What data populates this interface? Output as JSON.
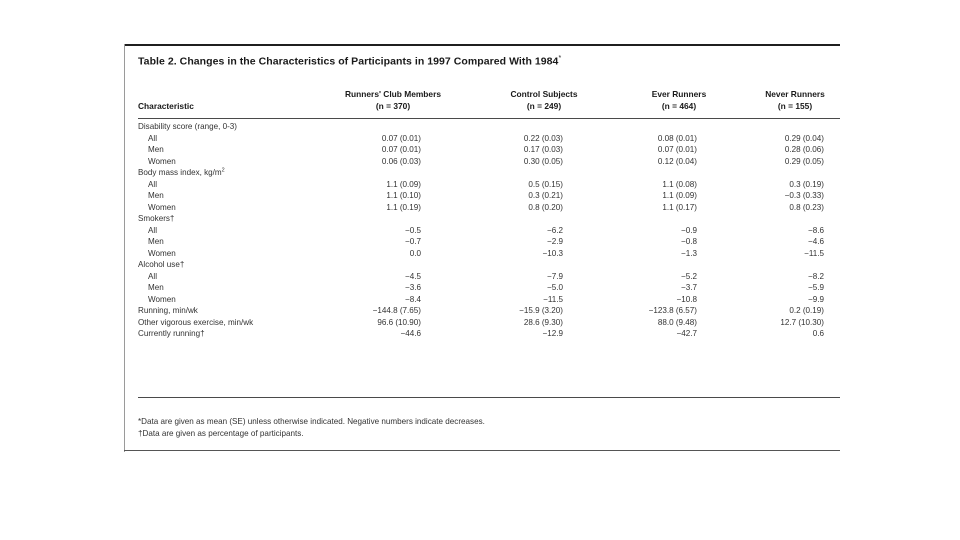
{
  "table": {
    "title": "Table 2. Changes in the Characteristics of Participants in 1997 Compared With 1984",
    "title_mark": "*",
    "row_header": "Characteristic",
    "columns": [
      {
        "name": "Runners' Club Members",
        "n": "(n = 370)"
      },
      {
        "name": "Control Subjects",
        "n": "(n = 249)"
      },
      {
        "name": "Ever Runners",
        "n": "(n = 464)"
      },
      {
        "name": "Never Runners",
        "n": "(n = 155)"
      }
    ],
    "rows": [
      {
        "label": "Disability score (range, 0-3)",
        "values": [
          "",
          "",
          "",
          ""
        ]
      },
      {
        "label": "All",
        "values": [
          "0.07 (0.01)",
          "0.22 (0.03)",
          "0.08 (0.01)",
          "0.29 (0.04)"
        ]
      },
      {
        "label": "Men",
        "values": [
          "0.07 (0.01)",
          "0.17 (0.03)",
          "0.07 (0.01)",
          "0.28 (0.06)"
        ]
      },
      {
        "label": "Women",
        "values": [
          "0.06 (0.03)",
          "0.30 (0.05)",
          "0.12 (0.04)",
          "0.29 (0.05)"
        ]
      },
      {
        "label": "Body mass index, kg/m",
        "values": [
          "",
          "",
          "",
          ""
        ]
      },
      {
        "label": "All",
        "values": [
          "1.1 (0.09)",
          "0.5 (0.15)",
          "1.1 (0.08)",
          "0.3 (0.19)"
        ]
      },
      {
        "label": "Men",
        "values": [
          "1.1 (0.10)",
          "0.3 (0.21)",
          "1.1 (0.09)",
          "−0.3 (0.33)"
        ]
      },
      {
        "label": "Women",
        "values": [
          "1.1 (0.19)",
          "0.8 (0.20)",
          "1.1 (0.17)",
          "0.8 (0.23)"
        ]
      },
      {
        "label": "Smokers†",
        "values": [
          "",
          "",
          "",
          ""
        ]
      },
      {
        "label": "All",
        "values": [
          "−0.5",
          "−6.2",
          "−0.9",
          "−8.6"
        ]
      },
      {
        "label": "Men",
        "values": [
          "−0.7",
          "−2.9",
          "−0.8",
          "−4.6"
        ]
      },
      {
        "label": "Women",
        "values": [
          "0.0",
          "−10.3",
          "−1.3",
          "−11.5"
        ]
      },
      {
        "label": "Alcohol use†",
        "values": [
          "",
          "",
          "",
          ""
        ]
      },
      {
        "label": "All",
        "values": [
          "−4.5",
          "−7.9",
          "−5.2",
          "−8.2"
        ]
      },
      {
        "label": "Men",
        "values": [
          "−3.6",
          "−5.0",
          "−3.7",
          "−5.9"
        ]
      },
      {
        "label": "Women",
        "values": [
          "−8.4",
          "−11.5",
          "−10.8",
          "−9.9"
        ]
      },
      {
        "label": "Running, min/wk",
        "values": [
          "−144.8 (7.65)",
          "−15.9 (3.20)",
          "−123.8 (6.57)",
          "0.2 (0.19)"
        ]
      },
      {
        "label": "Other vigorous exercise, min/wk",
        "values": [
          "96.6 (10.90)",
          "28.6 (9.30)",
          "88.0 (9.48)",
          "12.7 (10.30)"
        ]
      },
      {
        "label": "Currently running†",
        "values": [
          "−44.6",
          "−12.9",
          "−42.7",
          "0.6"
        ]
      }
    ],
    "bmi_superscript": "2",
    "footnotes": [
      "*Data are given as mean (SE) unless otherwise indicated. Negative numbers indicate decreases.",
      "†Data are given as percentage of participants."
    ]
  }
}
